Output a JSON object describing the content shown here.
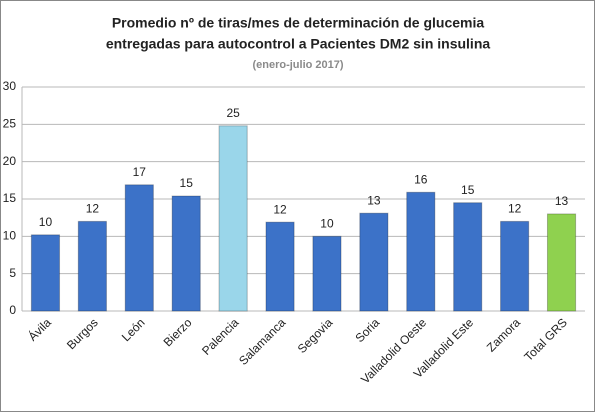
{
  "chart_data": {
    "type": "bar",
    "title": [
      "Promedio nº de tiras/mes de determinación de glucemia",
      "entregadas para autocontrol a Pacientes DM2 sin insulina"
    ],
    "subtitle": "(enero-julio 2017)",
    "categories": [
      "Ávila",
      "Burgos",
      "León",
      "Bierzo",
      "Palencia",
      "Salamanca",
      "Segovia",
      "Soria",
      "Valladolid Oeste",
      "Valladolid Este",
      "Zamora",
      "Total GRS"
    ],
    "values": [
      10.2,
      12.0,
      16.9,
      15.4,
      24.8,
      11.9,
      10.0,
      13.1,
      15.9,
      14.5,
      12.0,
      13.0
    ],
    "value_labels": [
      "10",
      "12",
      "17",
      "15",
      "25",
      "12",
      "10",
      "13",
      "16",
      "15",
      "12",
      "13"
    ],
    "colors": [
      "#3c72c8",
      "#3c72c8",
      "#3c72c8",
      "#3c72c8",
      "#9ad6ea",
      "#3c72c8",
      "#3c72c8",
      "#3c72c8",
      "#3c72c8",
      "#3c72c8",
      "#3c72c8",
      "#8fd14f"
    ],
    "ylim": [
      0,
      30
    ],
    "yticks": [
      0,
      5,
      10,
      15,
      20,
      25,
      30
    ],
    "grid": true
  }
}
